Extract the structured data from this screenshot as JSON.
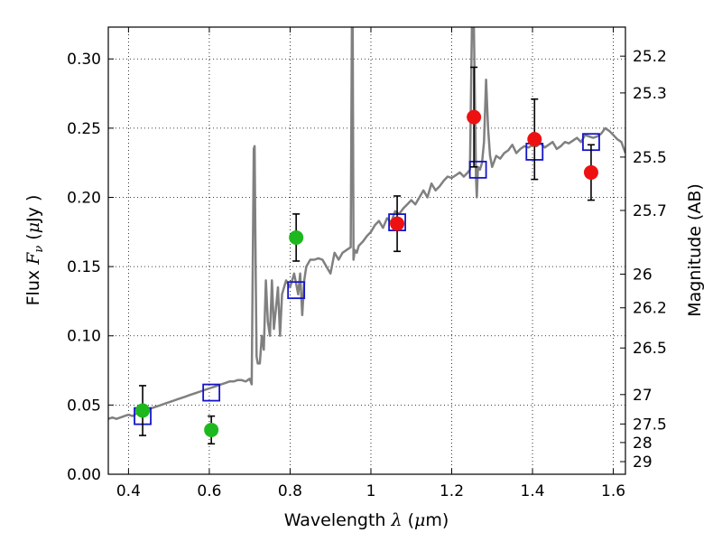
{
  "chart_data": {
    "type": "scatter",
    "xlabel_text": "Wavelength",
    "xlabel_symbol": "λ",
    "xlabel_unit_open": " (",
    "xlabel_unit_mu": "μ",
    "xlabel_unit_rest": "m)",
    "ylabel_text": "Flux",
    "ylabel_symbol": "F",
    "ylabel_sub": "ν",
    "ylabel_unit_open": "  (",
    "ylabel_unit_mu": "μ",
    "ylabel_unit_rest": "Jy",
    "ylabel_unit_close": " )",
    "y2label": "Magnitude (AB)",
    "xlim": [
      0.35,
      1.63
    ],
    "ylim": [
      0.0,
      0.323
    ],
    "x_ticks": [
      0.4,
      0.6,
      0.8,
      1.0,
      1.2,
      1.4,
      1.6
    ],
    "x_tick_labels": [
      "0.4",
      "0.6",
      "0.8",
      "1",
      "1.2",
      "1.4",
      "1.6"
    ],
    "y_ticks": [
      0.0,
      0.05,
      0.1,
      0.15,
      0.2,
      0.25,
      0.3
    ],
    "y_tick_labels": [
      "0.00",
      "0.05",
      "0.10",
      "0.15",
      "0.20",
      "0.25",
      "0.30"
    ],
    "y2_ticks": [
      {
        "label": "25.2",
        "mag": 25.2
      },
      {
        "label": "25.3",
        "mag": 25.3
      },
      {
        "label": "25.5",
        "mag": 25.5
      },
      {
        "label": "25.7",
        "mag": 25.7
      },
      {
        "label": "26",
        "mag": 26.0
      },
      {
        "label": "26.2",
        "mag": 26.2
      },
      {
        "label": "26.5",
        "mag": 26.5
      },
      {
        "label": "27",
        "mag": 27.0
      },
      {
        "label": "27.5",
        "mag": 27.5
      },
      {
        "label": "28",
        "mag": 28.0
      },
      {
        "label": "29",
        "mag": 29.0
      }
    ],
    "grid": true,
    "colors": {
      "model": "#808080",
      "green_points": "#1db81d",
      "red_points": "#ee1111",
      "model_boxes": "#1414c8",
      "errorbars": "#000000"
    },
    "series": [
      {
        "kind": "model_spectrum_line",
        "x": [
          0.35,
          0.36,
          0.37,
          0.38,
          0.39,
          0.4,
          0.41,
          0.42,
          0.43,
          0.44,
          0.45,
          0.46,
          0.47,
          0.48,
          0.49,
          0.5,
          0.51,
          0.52,
          0.53,
          0.54,
          0.55,
          0.56,
          0.57,
          0.58,
          0.59,
          0.6,
          0.61,
          0.62,
          0.63,
          0.64,
          0.65,
          0.66,
          0.67,
          0.68,
          0.69,
          0.7,
          0.705,
          0.71,
          0.712,
          0.715,
          0.717,
          0.72,
          0.725,
          0.73,
          0.735,
          0.74,
          0.745,
          0.75,
          0.755,
          0.76,
          0.765,
          0.77,
          0.775,
          0.78,
          0.79,
          0.8,
          0.81,
          0.82,
          0.825,
          0.83,
          0.835,
          0.84,
          0.85,
          0.86,
          0.87,
          0.88,
          0.89,
          0.9,
          0.91,
          0.92,
          0.93,
          0.94,
          0.95,
          0.953,
          0.955,
          0.957,
          0.96,
          0.965,
          0.97,
          0.98,
          0.99,
          1.0,
          1.01,
          1.02,
          1.03,
          1.04,
          1.05,
          1.06,
          1.07,
          1.08,
          1.09,
          1.1,
          1.11,
          1.12,
          1.13,
          1.14,
          1.15,
          1.16,
          1.17,
          1.18,
          1.19,
          1.2,
          1.21,
          1.22,
          1.23,
          1.24,
          1.245,
          1.25,
          1.255,
          1.26,
          1.262,
          1.265,
          1.27,
          1.275,
          1.28,
          1.285,
          1.29,
          1.295,
          1.3,
          1.31,
          1.32,
          1.33,
          1.34,
          1.35,
          1.36,
          1.37,
          1.38,
          1.39,
          1.4,
          1.41,
          1.42,
          1.43,
          1.44,
          1.45,
          1.46,
          1.47,
          1.48,
          1.49,
          1.5,
          1.51,
          1.52,
          1.53,
          1.54,
          1.55,
          1.56,
          1.57,
          1.58,
          1.59,
          1.6,
          1.61,
          1.62,
          1.63
        ],
        "y": [
          0.04,
          0.041,
          0.04,
          0.041,
          0.042,
          0.043,
          0.042,
          0.044,
          0.045,
          0.046,
          0.047,
          0.048,
          0.049,
          0.05,
          0.051,
          0.052,
          0.053,
          0.054,
          0.055,
          0.056,
          0.057,
          0.058,
          0.059,
          0.06,
          0.061,
          0.062,
          0.063,
          0.064,
          0.065,
          0.066,
          0.067,
          0.067,
          0.068,
          0.068,
          0.067,
          0.069,
          0.065,
          0.235,
          0.237,
          0.14,
          0.085,
          0.08,
          0.08,
          0.1,
          0.09,
          0.14,
          0.11,
          0.1,
          0.14,
          0.105,
          0.12,
          0.135,
          0.1,
          0.13,
          0.14,
          0.135,
          0.145,
          0.13,
          0.145,
          0.115,
          0.14,
          0.15,
          0.155,
          0.155,
          0.156,
          0.155,
          0.15,
          0.145,
          0.16,
          0.155,
          0.16,
          0.162,
          0.164,
          0.323,
          0.323,
          0.155,
          0.162,
          0.16,
          0.165,
          0.168,
          0.172,
          0.175,
          0.18,
          0.183,
          0.178,
          0.185,
          0.182,
          0.19,
          0.188,
          0.192,
          0.195,
          0.198,
          0.195,
          0.2,
          0.205,
          0.2,
          0.21,
          0.205,
          0.208,
          0.212,
          0.215,
          0.214,
          0.216,
          0.218,
          0.215,
          0.218,
          0.22,
          0.323,
          0.323,
          0.215,
          0.2,
          0.222,
          0.22,
          0.225,
          0.24,
          0.285,
          0.25,
          0.23,
          0.222,
          0.23,
          0.228,
          0.232,
          0.234,
          0.238,
          0.232,
          0.235,
          0.237,
          0.236,
          0.238,
          0.237,
          0.239,
          0.236,
          0.238,
          0.24,
          0.235,
          0.237,
          0.24,
          0.239,
          0.241,
          0.243,
          0.24,
          0.245,
          0.244,
          0.243,
          0.244,
          0.246,
          0.25,
          0.248,
          0.245,
          0.242,
          0.24,
          0.232
        ]
      },
      {
        "kind": "observed_green",
        "x": [
          0.435,
          0.605,
          0.815
        ],
        "y": [
          0.046,
          0.032,
          0.171
        ],
        "err": [
          0.018,
          0.01,
          0.017
        ]
      },
      {
        "kind": "observed_red",
        "x": [
          1.065,
          1.255,
          1.405,
          1.545
        ],
        "y": [
          0.181,
          0.258,
          0.242,
          0.218
        ],
        "err": [
          0.02,
          0.036,
          0.029,
          0.02
        ]
      },
      {
        "kind": "model_photometry_boxes",
        "x": [
          0.435,
          0.605,
          0.815,
          1.065,
          1.265,
          1.405,
          1.545
        ],
        "y": [
          0.042,
          0.059,
          0.133,
          0.182,
          0.22,
          0.233,
          0.24
        ]
      }
    ]
  }
}
